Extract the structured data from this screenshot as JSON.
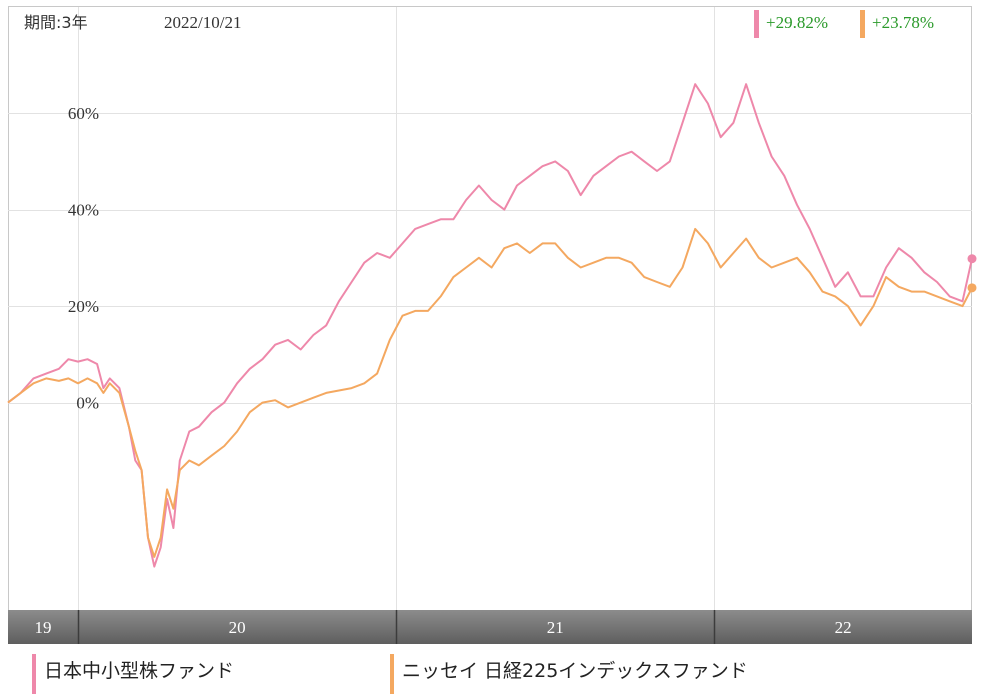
{
  "header": {
    "period_label": "期間:3年",
    "date_label": "2022/10/21",
    "return_1": "+29.82%",
    "return_2": "+23.78%"
  },
  "legend": {
    "series_1": "日本中小型株ファンド",
    "series_2": "ニッセイ 日経225インデックスファンド"
  },
  "colors": {
    "series_1": "#ee88aa",
    "series_2": "#f4a860",
    "return_text": "#2a9a2a",
    "year_band": "#7a7a7a",
    "grid": "#e2e2e2"
  },
  "chart_data": {
    "type": "line",
    "y_unit": "%",
    "ylim": [
      -43,
      82
    ],
    "y_ticks": [
      0,
      20,
      40,
      60
    ],
    "y_tick_labels": [
      "0%",
      "20%",
      "40%",
      "60%"
    ],
    "x_range": [
      2019.78,
      2022.81
    ],
    "year_labels": [
      "19",
      "20",
      "21",
      "22"
    ],
    "year_boundaries": [
      2020.0,
      2021.0,
      2022.0
    ],
    "grid": true,
    "series": [
      {
        "name": "日本中小型株ファンド",
        "color": "#ee88aa",
        "end_value": 29.82,
        "points": [
          [
            2019.78,
            0
          ],
          [
            2019.82,
            2
          ],
          [
            2019.86,
            5
          ],
          [
            2019.9,
            6
          ],
          [
            2019.94,
            7
          ],
          [
            2019.97,
            9
          ],
          [
            2020.0,
            8.5
          ],
          [
            2020.03,
            9
          ],
          [
            2020.06,
            8
          ],
          [
            2020.08,
            3
          ],
          [
            2020.1,
            5
          ],
          [
            2020.13,
            3
          ],
          [
            2020.16,
            -5
          ],
          [
            2020.18,
            -12
          ],
          [
            2020.2,
            -14
          ],
          [
            2020.22,
            -28
          ],
          [
            2020.24,
            -34
          ],
          [
            2020.26,
            -30
          ],
          [
            2020.28,
            -20
          ],
          [
            2020.3,
            -26
          ],
          [
            2020.32,
            -12
          ],
          [
            2020.35,
            -6
          ],
          [
            2020.38,
            -5
          ],
          [
            2020.42,
            -2
          ],
          [
            2020.46,
            0
          ],
          [
            2020.5,
            4
          ],
          [
            2020.54,
            7
          ],
          [
            2020.58,
            9
          ],
          [
            2020.62,
            12
          ],
          [
            2020.66,
            13
          ],
          [
            2020.7,
            11
          ],
          [
            2020.74,
            14
          ],
          [
            2020.78,
            16
          ],
          [
            2020.82,
            21
          ],
          [
            2020.86,
            25
          ],
          [
            2020.9,
            29
          ],
          [
            2020.94,
            31
          ],
          [
            2020.98,
            30
          ],
          [
            2021.02,
            33
          ],
          [
            2021.06,
            36
          ],
          [
            2021.1,
            37
          ],
          [
            2021.14,
            38
          ],
          [
            2021.18,
            38
          ],
          [
            2021.22,
            42
          ],
          [
            2021.26,
            45
          ],
          [
            2021.3,
            42
          ],
          [
            2021.34,
            40
          ],
          [
            2021.38,
            45
          ],
          [
            2021.42,
            47
          ],
          [
            2021.46,
            49
          ],
          [
            2021.5,
            50
          ],
          [
            2021.54,
            48
          ],
          [
            2021.58,
            43
          ],
          [
            2021.62,
            47
          ],
          [
            2021.66,
            49
          ],
          [
            2021.7,
            51
          ],
          [
            2021.74,
            52
          ],
          [
            2021.78,
            50
          ],
          [
            2021.82,
            48
          ],
          [
            2021.86,
            50
          ],
          [
            2021.9,
            58
          ],
          [
            2021.94,
            66
          ],
          [
            2021.98,
            62
          ],
          [
            2022.02,
            55
          ],
          [
            2022.06,
            58
          ],
          [
            2022.1,
            66
          ],
          [
            2022.14,
            58
          ],
          [
            2022.18,
            51
          ],
          [
            2022.22,
            47
          ],
          [
            2022.26,
            41
          ],
          [
            2022.3,
            36
          ],
          [
            2022.34,
            30
          ],
          [
            2022.38,
            24
          ],
          [
            2022.42,
            27
          ],
          [
            2022.46,
            22
          ],
          [
            2022.5,
            22
          ],
          [
            2022.54,
            28
          ],
          [
            2022.58,
            32
          ],
          [
            2022.62,
            30
          ],
          [
            2022.66,
            27
          ],
          [
            2022.7,
            25
          ],
          [
            2022.74,
            22
          ],
          [
            2022.78,
            21
          ],
          [
            2022.81,
            29.82
          ]
        ]
      },
      {
        "name": "ニッセイ 日経225インデックスファンド",
        "color": "#f4a860",
        "end_value": 23.78,
        "points": [
          [
            2019.78,
            0
          ],
          [
            2019.82,
            2
          ],
          [
            2019.86,
            4
          ],
          [
            2019.9,
            5
          ],
          [
            2019.94,
            4.5
          ],
          [
            2019.97,
            5
          ],
          [
            2020.0,
            4
          ],
          [
            2020.03,
            5
          ],
          [
            2020.06,
            4
          ],
          [
            2020.08,
            2
          ],
          [
            2020.1,
            4
          ],
          [
            2020.13,
            2
          ],
          [
            2020.16,
            -5
          ],
          [
            2020.18,
            -10
          ],
          [
            2020.2,
            -14
          ],
          [
            2020.22,
            -28
          ],
          [
            2020.24,
            -32
          ],
          [
            2020.26,
            -28
          ],
          [
            2020.28,
            -18
          ],
          [
            2020.3,
            -22
          ],
          [
            2020.32,
            -14
          ],
          [
            2020.35,
            -12
          ],
          [
            2020.38,
            -13
          ],
          [
            2020.42,
            -11
          ],
          [
            2020.46,
            -9
          ],
          [
            2020.5,
            -6
          ],
          [
            2020.54,
            -2
          ],
          [
            2020.58,
            0
          ],
          [
            2020.62,
            0.5
          ],
          [
            2020.66,
            -1
          ],
          [
            2020.7,
            0
          ],
          [
            2020.74,
            1
          ],
          [
            2020.78,
            2
          ],
          [
            2020.82,
            2.5
          ],
          [
            2020.86,
            3
          ],
          [
            2020.9,
            4
          ],
          [
            2020.94,
            6
          ],
          [
            2020.98,
            13
          ],
          [
            2021.02,
            18
          ],
          [
            2021.06,
            19
          ],
          [
            2021.1,
            19
          ],
          [
            2021.14,
            22
          ],
          [
            2021.18,
            26
          ],
          [
            2021.22,
            28
          ],
          [
            2021.26,
            30
          ],
          [
            2021.3,
            28
          ],
          [
            2021.34,
            32
          ],
          [
            2021.38,
            33
          ],
          [
            2021.42,
            31
          ],
          [
            2021.46,
            33
          ],
          [
            2021.5,
            33
          ],
          [
            2021.54,
            30
          ],
          [
            2021.58,
            28
          ],
          [
            2021.62,
            29
          ],
          [
            2021.66,
            30
          ],
          [
            2021.7,
            30
          ],
          [
            2021.74,
            29
          ],
          [
            2021.78,
            26
          ],
          [
            2021.82,
            25
          ],
          [
            2021.86,
            24
          ],
          [
            2021.9,
            28
          ],
          [
            2021.94,
            36
          ],
          [
            2021.98,
            33
          ],
          [
            2022.02,
            28
          ],
          [
            2022.06,
            31
          ],
          [
            2022.1,
            34
          ],
          [
            2022.14,
            30
          ],
          [
            2022.18,
            28
          ],
          [
            2022.22,
            29
          ],
          [
            2022.26,
            30
          ],
          [
            2022.3,
            27
          ],
          [
            2022.34,
            23
          ],
          [
            2022.38,
            22
          ],
          [
            2022.42,
            20
          ],
          [
            2022.46,
            16
          ],
          [
            2022.5,
            20
          ],
          [
            2022.54,
            26
          ],
          [
            2022.58,
            24
          ],
          [
            2022.62,
            23
          ],
          [
            2022.66,
            23
          ],
          [
            2022.7,
            22
          ],
          [
            2022.74,
            21
          ],
          [
            2022.78,
            20
          ],
          [
            2022.81,
            23.78
          ]
        ]
      }
    ]
  }
}
